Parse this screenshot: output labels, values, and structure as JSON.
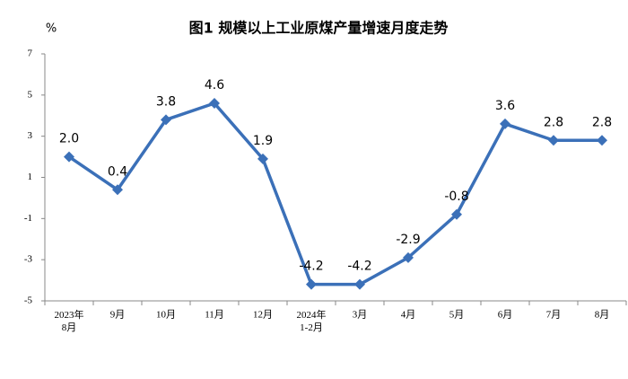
{
  "chart_data": {
    "type": "line",
    "title": "图1  规模以上工业原煤产量增速月度走势",
    "y_label": "%",
    "categories": [
      "2023年\n8月",
      "9月",
      "10月",
      "11月",
      "12月",
      "2024年\n1-2月",
      "3月",
      "4月",
      "5月",
      "6月",
      "7月",
      "8月"
    ],
    "series": [
      {
        "name": "原煤产量增速",
        "color": "#3b70b8",
        "values": [
          2.0,
          0.4,
          3.8,
          4.6,
          1.9,
          -4.2,
          -4.2,
          -2.9,
          -0.8,
          3.6,
          2.8,
          2.8
        ],
        "value_labels": [
          "2.0",
          "0.4",
          "3.8",
          "4.6",
          "1.9",
          "-4.2",
          "-4.2",
          "-2.9",
          "-0.8",
          "3.6",
          "2.8",
          "2.8"
        ]
      }
    ],
    "ylim": [
      -5,
      7
    ],
    "yticks": [
      -5,
      -3,
      -1,
      1,
      3,
      5,
      7
    ],
    "grid": false
  }
}
